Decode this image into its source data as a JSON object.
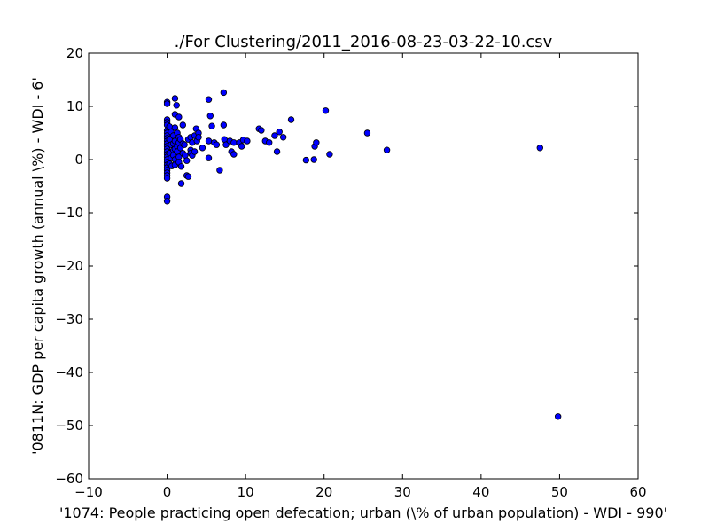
{
  "chart_data": {
    "type": "scatter",
    "title": "./For Clustering/2011_2016-08-23-03-22-10.csv",
    "xlabel": "'1074: People practicing open defecation; urban  (\\% of urban population) - WDI - 990'",
    "ylabel": "'0811N: GDP per capita growth  (annual \\%) - WDI - 6'",
    "xlim": [
      -10,
      60
    ],
    "ylim": [
      -60,
      20
    ],
    "xticks": [
      -10,
      0,
      10,
      20,
      30,
      40,
      50,
      60
    ],
    "yticks": [
      -60,
      -50,
      -40,
      -30,
      -20,
      -10,
      0,
      10,
      20
    ],
    "xtick_labels": [
      "−10",
      "0",
      "10",
      "20",
      "30",
      "40",
      "50",
      "60"
    ],
    "ytick_labels": [
      "−60",
      "−50",
      "−40",
      "−30",
      "−20",
      "−10",
      "0",
      "10",
      "20"
    ],
    "grid": false,
    "marker_color": "#0000ff",
    "marker_edge": "#000000",
    "points": [
      [
        0.0,
        10.8
      ],
      [
        0.0,
        10.5
      ],
      [
        0.0,
        7.5
      ],
      [
        0.0,
        7.0
      ],
      [
        0.0,
        6.5
      ],
      [
        0.0,
        5.5
      ],
      [
        0.0,
        5.0
      ],
      [
        0.0,
        4.5
      ],
      [
        0.0,
        4.0
      ],
      [
        0.0,
        3.5
      ],
      [
        0.0,
        3.0
      ],
      [
        0.0,
        2.5
      ],
      [
        0.0,
        2.0
      ],
      [
        0.0,
        1.5
      ],
      [
        0.0,
        1.0
      ],
      [
        0.0,
        0.5
      ],
      [
        0.0,
        0.0
      ],
      [
        0.0,
        -0.5
      ],
      [
        0.0,
        -1.0
      ],
      [
        0.0,
        -1.5
      ],
      [
        0.0,
        -2.0
      ],
      [
        0.0,
        -2.5
      ],
      [
        0.0,
        -3.0
      ],
      [
        0.0,
        -3.5
      ],
      [
        0.0,
        -7.0
      ],
      [
        0.0,
        -7.8
      ],
      [
        0.3,
        6.2
      ],
      [
        0.3,
        3.8
      ],
      [
        0.3,
        1.2
      ],
      [
        0.3,
        -0.8
      ],
      [
        0.5,
        5.2
      ],
      [
        0.5,
        2.8
      ],
      [
        0.5,
        0.3
      ],
      [
        0.6,
        -1.2
      ],
      [
        0.8,
        4.5
      ],
      [
        0.8,
        3.0
      ],
      [
        0.8,
        1.8
      ],
      [
        0.8,
        0.8
      ],
      [
        1.0,
        11.5
      ],
      [
        1.0,
        8.5
      ],
      [
        1.0,
        6.0
      ],
      [
        1.0,
        3.5
      ],
      [
        1.0,
        2.0
      ],
      [
        1.0,
        0.0
      ],
      [
        1.0,
        -1.0
      ],
      [
        1.2,
        10.2
      ],
      [
        1.3,
        5.0
      ],
      [
        1.3,
        2.5
      ],
      [
        1.3,
        1.5
      ],
      [
        1.5,
        8.0
      ],
      [
        1.5,
        4.2
      ],
      [
        1.5,
        3.2
      ],
      [
        1.5,
        0.5
      ],
      [
        1.5,
        -0.5
      ],
      [
        1.7,
        3.8
      ],
      [
        1.7,
        2.2
      ],
      [
        1.8,
        -1.3
      ],
      [
        1.8,
        -4.5
      ],
      [
        2.0,
        6.5
      ],
      [
        2.0,
        3.0
      ],
      [
        2.0,
        1.2
      ],
      [
        2.2,
        2.8
      ],
      [
        2.3,
        0.8
      ],
      [
        2.5,
        -0.2
      ],
      [
        2.5,
        -3.0
      ],
      [
        2.7,
        -3.2
      ],
      [
        2.7,
        3.8
      ],
      [
        3.0,
        4.2
      ],
      [
        3.0,
        1.8
      ],
      [
        3.0,
        1.2
      ],
      [
        3.2,
        3.2
      ],
      [
        3.2,
        0.8
      ],
      [
        3.5,
        4.5
      ],
      [
        3.5,
        1.5
      ],
      [
        3.7,
        5.8
      ],
      [
        3.8,
        3.5
      ],
      [
        4.0,
        5.0
      ],
      [
        4.0,
        4.2
      ],
      [
        4.5,
        2.2
      ],
      [
        5.3,
        3.5
      ],
      [
        5.3,
        0.3
      ],
      [
        5.3,
        11.3
      ],
      [
        5.5,
        8.2
      ],
      [
        5.7,
        6.3
      ],
      [
        6.0,
        3.2
      ],
      [
        6.3,
        2.8
      ],
      [
        6.7,
        -2.0
      ],
      [
        7.2,
        12.6
      ],
      [
        7.2,
        6.5
      ],
      [
        7.3,
        3.8
      ],
      [
        7.5,
        2.8
      ],
      [
        8.0,
        3.5
      ],
      [
        8.2,
        1.5
      ],
      [
        8.5,
        1.0
      ],
      [
        8.5,
        3.2
      ],
      [
        9.2,
        3.2
      ],
      [
        9.5,
        2.5
      ],
      [
        9.7,
        3.7
      ],
      [
        10.2,
        3.5
      ],
      [
        11.7,
        5.8
      ],
      [
        12.0,
        5.5
      ],
      [
        12.5,
        3.5
      ],
      [
        13.0,
        3.2
      ],
      [
        13.7,
        4.5
      ],
      [
        14.0,
        1.5
      ],
      [
        14.3,
        5.2
      ],
      [
        14.8,
        4.2
      ],
      [
        15.8,
        7.5
      ],
      [
        17.7,
        -0.1
      ],
      [
        18.7,
        0.0
      ],
      [
        18.8,
        2.5
      ],
      [
        19.0,
        3.2
      ],
      [
        20.2,
        9.2
      ],
      [
        20.7,
        1.0
      ],
      [
        25.5,
        5.0
      ],
      [
        28.0,
        1.8
      ],
      [
        47.5,
        2.2
      ],
      [
        49.8,
        -48.3
      ]
    ]
  }
}
